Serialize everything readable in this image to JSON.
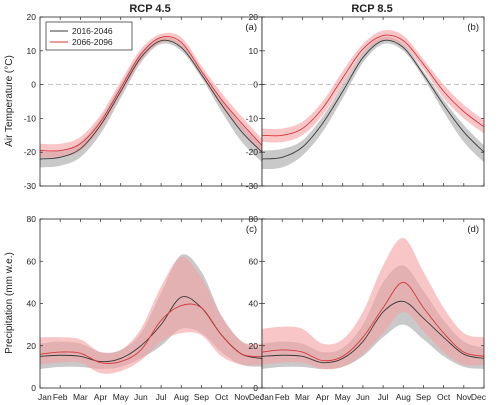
{
  "colors": {
    "gray_line": "#3a3a3a",
    "gray_band": "#a8a8a8",
    "red_line": "#d6373c",
    "red_band": "#f4a3a5",
    "zero_line": "#bbbbbb",
    "axis": "#262626"
  },
  "chart_data": [
    {
      "id": "a",
      "type": "line",
      "title": "RCP 4.5",
      "panel_label": "(a)",
      "ylabel": "Air Temperature (°C)",
      "ylim": [
        -30,
        20
      ],
      "yticks": [
        -30,
        -20,
        -10,
        0,
        10,
        20
      ],
      "zero_line": true,
      "x": [
        "Jan",
        "Feb",
        "Mar",
        "Apr",
        "May",
        "Jun",
        "Jul",
        "Aug",
        "Sep",
        "Oct",
        "Nov",
        "Dec"
      ],
      "legend": {
        "position": "top-left",
        "entries": [
          "2016-2046",
          "2066-2096"
        ]
      },
      "series": [
        {
          "name": "2016-2046",
          "color": "gray",
          "mean": [
            -22,
            -21.5,
            -19,
            -12,
            -2,
            8,
            13,
            11,
            3,
            -6,
            -14,
            -20
          ],
          "lower": [
            -24.5,
            -24,
            -21.5,
            -14.5,
            -4,
            6.5,
            12,
            10,
            2,
            -8,
            -17,
            -23
          ],
          "upper": [
            -20,
            -19.5,
            -17,
            -10,
            0,
            9.5,
            14,
            12,
            4,
            -4.5,
            -12,
            -18
          ]
        },
        {
          "name": "2066-2096",
          "color": "red",
          "mean": [
            -19.5,
            -19.5,
            -17.5,
            -11,
            -1,
            9,
            14,
            12.5,
            4,
            -4.5,
            -11.5,
            -18
          ],
          "lower": [
            -21.5,
            -21.5,
            -19.5,
            -13,
            -3,
            7,
            12.5,
            11,
            2.5,
            -6.5,
            -13.5,
            -20.5
          ],
          "upper": [
            -17.5,
            -17.5,
            -15.5,
            -9,
            1,
            10.5,
            15,
            14,
            5.5,
            -2.5,
            -9.5,
            -16
          ]
        }
      ]
    },
    {
      "id": "b",
      "type": "line",
      "title": "RCP 8.5",
      "panel_label": "(b)",
      "ylim": [
        -30,
        20
      ],
      "yticks": [
        -30,
        -20,
        -10,
        0,
        10,
        20
      ],
      "zero_line": true,
      "x": [
        "Jan",
        "Feb",
        "Mar",
        "Apr",
        "May",
        "Jun",
        "Jul",
        "Aug",
        "Sep",
        "Oct",
        "Nov",
        "Dec"
      ],
      "series": [
        {
          "name": "2016-2046",
          "color": "gray",
          "mean": [
            -22,
            -21.5,
            -18.5,
            -11.5,
            -2,
            8,
            13,
            11,
            3,
            -6,
            -14,
            -20
          ],
          "lower": [
            -25,
            -24.5,
            -21,
            -14,
            -4,
            6.5,
            12,
            10,
            2,
            -8,
            -17,
            -23
          ],
          "upper": [
            -19.5,
            -19,
            -16.5,
            -9.5,
            0,
            9.5,
            14,
            12,
            4,
            -4.5,
            -12,
            -18
          ]
        },
        {
          "name": "2066-2096",
          "color": "red",
          "mean": [
            -15,
            -15,
            -13,
            -7,
            2,
            10.5,
            14.5,
            13,
            6,
            -2,
            -8,
            -12.5
          ],
          "lower": [
            -17,
            -17,
            -15,
            -9,
            0,
            9,
            13,
            11.5,
            4.5,
            -4,
            -10,
            -14.5
          ],
          "upper": [
            -13,
            -13,
            -11,
            -5,
            4,
            12,
            16,
            14.5,
            7.5,
            0,
            -6,
            -10.5
          ]
        }
      ]
    },
    {
      "id": "c",
      "type": "line",
      "panel_label": "(c)",
      "ylabel": "Precipitation (mm w.e.)",
      "ylim": [
        0,
        80
      ],
      "yticks": [
        0,
        20,
        40,
        60,
        80
      ],
      "zero_line": false,
      "x": [
        "Jan",
        "Feb",
        "Mar",
        "Apr",
        "May",
        "Jun",
        "Jul",
        "Aug",
        "Sep",
        "Oct",
        "Nov",
        "Dec"
      ],
      "series": [
        {
          "name": "2016-2046",
          "color": "gray",
          "mean": [
            15,
            15.5,
            15,
            12.5,
            14,
            20,
            30,
            43,
            38,
            25,
            16,
            14
          ],
          "lower": [
            9,
            10,
            10,
            9,
            10,
            14,
            20,
            28,
            26,
            17,
            11,
            10
          ],
          "upper": [
            21,
            22,
            21,
            17,
            18,
            26,
            45,
            63,
            55,
            34,
            22,
            19
          ]
        },
        {
          "name": "2066-2096",
          "color": "red",
          "mean": [
            16,
            17,
            16.5,
            12,
            12.5,
            18,
            32,
            39,
            38,
            25,
            16,
            15
          ],
          "lower": [
            11,
            12,
            12,
            7,
            8,
            13,
            22,
            26,
            25,
            15,
            11,
            11
          ],
          "upper": [
            24,
            24,
            23,
            17,
            18,
            28,
            48,
            62,
            52,
            34,
            22,
            21
          ]
        }
      ]
    },
    {
      "id": "d",
      "type": "line",
      "panel_label": "(d)",
      "ylim": [
        0,
        80
      ],
      "yticks": [
        0,
        20,
        40,
        60,
        80
      ],
      "zero_line": false,
      "x": [
        "Jan",
        "Feb",
        "Mar",
        "Apr",
        "May",
        "Jun",
        "Jul",
        "Aug",
        "Sep",
        "Oct",
        "Nov",
        "Dec"
      ],
      "series": [
        {
          "name": "2016-2046",
          "color": "gray",
          "mean": [
            15,
            15.5,
            15,
            12,
            14,
            22,
            36,
            41,
            33,
            24,
            16,
            14
          ],
          "lower": [
            9,
            10,
            10,
            9,
            10,
            15,
            24,
            30,
            23,
            15,
            10,
            9
          ],
          "upper": [
            21,
            22,
            21,
            17,
            19,
            30,
            50,
            58,
            46,
            32,
            22,
            19
          ]
        },
        {
          "name": "2066-2096",
          "color": "red",
          "mean": [
            17,
            18,
            17,
            13,
            15,
            24,
            38,
            50,
            38,
            26,
            17,
            15
          ],
          "lower": [
            11,
            12,
            12,
            9,
            10,
            16,
            26,
            36,
            27,
            17,
            11,
            11
          ],
          "upper": [
            28,
            29,
            28,
            21,
            23,
            36,
            58,
            71,
            55,
            38,
            26,
            24
          ]
        }
      ]
    }
  ]
}
